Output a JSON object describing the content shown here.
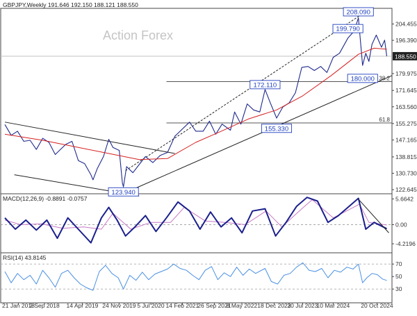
{
  "chart_data": [
    {
      "panel": "price",
      "type": "line",
      "header": "GBPJPY,Weekly  191.646 192.150 188.121 188.550",
      "watermark": "Action Forex",
      "y_ticks": [
        "204.455",
        "196.390",
        "188.550",
        "179.975",
        "171.645",
        "163.560",
        "155.275",
        "147.165",
        "138.815",
        "130.730",
        "122.645"
      ],
      "y_tick_values": [
        204.455,
        196.39,
        188.55,
        179.975,
        171.645,
        163.56,
        155.275,
        147.165,
        138.815,
        130.73,
        122.645
      ],
      "ylim": [
        120.6,
        212.2
      ],
      "last_price": 188.55,
      "last_price_label": "188.550",
      "x_labels": [
        "21 Jan 2018",
        "2 Sep 2018",
        "14 Apr 2019",
        "24 Nov 2019",
        "5 Jul 2020",
        "14 Feb 2021",
        "26 Sep 2021",
        "8 May 2022",
        "18 Dec 2022",
        "30 Jul 2023",
        "10 Mar 2024",
        "20 Oct 2024"
      ],
      "close_series": [
        [
          "2018-01-21",
          154.8
        ],
        [
          "2018-03-04",
          149.5
        ],
        [
          "2018-04-15",
          151.5
        ],
        [
          "2018-05-27",
          146.5
        ],
        [
          "2018-07-08",
          147.0
        ],
        [
          "2018-08-19",
          142.5
        ],
        [
          "2018-09-30",
          148.0
        ],
        [
          "2018-11-11",
          146.0
        ],
        [
          "2018-12-23",
          140.0
        ],
        [
          "2019-01-20",
          142.0
        ],
        [
          "2019-03-03",
          145.0
        ],
        [
          "2019-04-14",
          146.5
        ],
        [
          "2019-05-26",
          137.0
        ],
        [
          "2019-07-07",
          135.5
        ],
        [
          "2019-08-18",
          130.0
        ],
        [
          "2019-09-01",
          127.5
        ],
        [
          "2019-09-29",
          133.0
        ],
        [
          "2019-11-10",
          139.0
        ],
        [
          "2019-12-15",
          147.5
        ],
        [
          "2020-01-12",
          143.5
        ],
        [
          "2020-02-23",
          142.0
        ],
        [
          "2020-03-15",
          126.0
        ],
        [
          "2020-03-22",
          124.0
        ],
        [
          "2020-04-12",
          134.0
        ],
        [
          "2020-05-24",
          131.0
        ],
        [
          "2020-07-05",
          135.0
        ],
        [
          "2020-08-16",
          139.0
        ],
        [
          "2020-10-04",
          136.0
        ],
        [
          "2020-11-22",
          139.5
        ],
        [
          "2021-01-10",
          141.0
        ],
        [
          "2021-02-28",
          149.0
        ],
        [
          "2021-04-11",
          152.0
        ],
        [
          "2021-06-06",
          156.0
        ],
        [
          "2021-07-18",
          151.5
        ],
        [
          "2021-09-05",
          151.5
        ],
        [
          "2021-10-17",
          156.5
        ],
        [
          "2021-11-28",
          150.0
        ],
        [
          "2022-01-09",
          155.0
        ],
        [
          "2022-03-06",
          152.0
        ],
        [
          "2022-04-03",
          161.0
        ],
        [
          "2022-05-15",
          155.0
        ],
        [
          "2022-06-26",
          165.0
        ],
        [
          "2022-08-07",
          162.0
        ],
        [
          "2022-09-18",
          161.0
        ],
        [
          "2022-10-23",
          172.1
        ],
        [
          "2022-11-27",
          165.5
        ],
        [
          "2023-01-08",
          158.0
        ],
        [
          "2023-02-19",
          163.5
        ],
        [
          "2023-04-02",
          165.5
        ],
        [
          "2023-05-14",
          170.5
        ],
        [
          "2023-06-25",
          183.0
        ],
        [
          "2023-08-06",
          183.5
        ],
        [
          "2023-09-17",
          181.5
        ],
        [
          "2023-10-29",
          183.5
        ],
        [
          "2023-12-10",
          180.5
        ],
        [
          "2024-01-21",
          188.0
        ],
        [
          "2024-03-03",
          190.0
        ],
        [
          "2024-04-28",
          197.5
        ],
        [
          "2024-06-09",
          201.0
        ],
        [
          "2024-07-07",
          207.5
        ],
        [
          "2024-08-04",
          184.0
        ],
        [
          "2024-08-25",
          190.0
        ],
        [
          "2024-09-15",
          186.0
        ],
        [
          "2024-10-06",
          194.5
        ],
        [
          "2024-11-03",
          199.0
        ],
        [
          "2024-12-08",
          193.0
        ],
        [
          "2024-12-29",
          196.5
        ],
        [
          "2025-01-12",
          188.55
        ]
      ],
      "ma_series": [
        [
          "2018-01-21",
          150.0
        ],
        [
          "2018-09-30",
          147.0
        ],
        [
          "2019-05-26",
          143.5
        ],
        [
          "2019-12-15",
          140.5
        ],
        [
          "2020-07-05",
          137.5
        ],
        [
          "2021-01-10",
          138.0
        ],
        [
          "2021-07-18",
          146.0
        ],
        [
          "2021-12-19",
          151.0
        ],
        [
          "2022-07-03",
          157.5
        ],
        [
          "2023-01-08",
          162.0
        ],
        [
          "2023-07-02",
          169.0
        ],
        [
          "2024-01-07",
          179.0
        ],
        [
          "2024-07-07",
          189.5
        ],
        [
          "2024-10-20",
          192.5
        ],
        [
          "2025-01-12",
          192.0
        ]
      ],
      "callouts": [
        {
          "label": "208.090",
          "date": "2024-07-07",
          "value": 208.09
        },
        {
          "label": "199.790",
          "date": "2024-04-28",
          "value": 199.79
        },
        {
          "label": "180.000",
          "date": "2024-08-04",
          "value": 180.0
        },
        {
          "label": "172.110",
          "date": "2022-10-23",
          "value": 172.11
        },
        {
          "label": "155.330",
          "date": "2023-01-08",
          "value": 155.33
        },
        {
          "label": "123.940",
          "date": "2020-03-22",
          "value": 123.94
        }
      ],
      "fib_levels": [
        {
          "label": "38.2",
          "value": 176.0
        },
        {
          "label": "61.8",
          "value": 155.6
        }
      ],
      "trendlines": [
        {
          "name": "falling-channel-upper",
          "from": [
            "2018-01-21",
            156.0
          ],
          "to": [
            "2021-02-28",
            140.5
          ]
        },
        {
          "name": "falling-channel-lower",
          "from": [
            "2018-03-25",
            130.0
          ],
          "to": [
            "2020-07-05",
            119.5
          ]
        },
        {
          "name": "rising-support",
          "from": [
            "2020-05-31",
            123.0
          ],
          "to": [
            "2025-02-16",
            179.0
          ]
        },
        {
          "name": "rising-channel-upper",
          "from": [
            "2020-04-05",
            132.0
          ],
          "to": [
            "2024-07-14",
            208.5
          ],
          "dashed": true
        }
      ]
    },
    {
      "panel": "macd",
      "type": "line",
      "header": "MACD(12,26,9) -0.8891 -0.0757",
      "y_ticks": [
        "5.6642",
        "0.00",
        "-4.2196"
      ],
      "y_tick_values": [
        5.6642,
        0,
        -4.2196
      ],
      "ylim": [
        -6.2,
        6.8
      ],
      "macd_series": [
        [
          "2018-01-21",
          1.5
        ],
        [
          "2018-04-01",
          -1.0
        ],
        [
          "2018-06-10",
          1.0
        ],
        [
          "2018-08-19",
          -1.2
        ],
        [
          "2018-10-28",
          1.0
        ],
        [
          "2019-01-06",
          -3.0
        ],
        [
          "2019-03-17",
          1.5
        ],
        [
          "2019-05-26",
          -1.0
        ],
        [
          "2019-08-18",
          -4.0
        ],
        [
          "2019-10-27",
          1.5
        ],
        [
          "2019-12-15",
          3.8
        ],
        [
          "2020-02-09",
          1.0
        ],
        [
          "2020-04-05",
          -2.5
        ],
        [
          "2020-06-07",
          -0.5
        ],
        [
          "2020-08-16",
          2.0
        ],
        [
          "2020-10-25",
          -1.5
        ],
        [
          "2021-01-03",
          1.5
        ],
        [
          "2021-03-21",
          5.0
        ],
        [
          "2021-06-06",
          3.0
        ],
        [
          "2021-08-15",
          -1.0
        ],
        [
          "2021-10-24",
          2.8
        ],
        [
          "2022-01-02",
          -0.5
        ],
        [
          "2022-03-13",
          1.5
        ],
        [
          "2022-05-22",
          -1.8
        ],
        [
          "2022-07-31",
          3.0
        ],
        [
          "2022-10-23",
          3.5
        ],
        [
          "2023-01-01",
          -2.5
        ],
        [
          "2023-03-12",
          0.5
        ],
        [
          "2023-05-21",
          4.0
        ],
        [
          "2023-07-30",
          6.0
        ],
        [
          "2023-10-08",
          5.2
        ],
        [
          "2023-12-17",
          0.5
        ],
        [
          "2024-02-25",
          2.0
        ],
        [
          "2024-07-07",
          5.8
        ],
        [
          "2024-08-25",
          -1.0
        ],
        [
          "2024-10-20",
          0.5
        ],
        [
          "2025-01-12",
          -0.89
        ]
      ],
      "signal_series": [
        [
          "2018-01-21",
          1.0
        ],
        [
          "2018-05-06",
          0.0
        ],
        [
          "2018-09-23",
          0.2
        ],
        [
          "2019-02-10",
          -0.8
        ],
        [
          "2019-06-30",
          -0.5
        ],
        [
          "2019-10-27",
          -1.0
        ],
        [
          "2020-01-12",
          2.5
        ],
        [
          "2020-05-10",
          -1.0
        ],
        [
          "2020-09-20",
          0.5
        ],
        [
          "2021-01-31",
          0.5
        ],
        [
          "2021-05-02",
          3.8
        ],
        [
          "2021-09-19",
          0.8
        ],
        [
          "2022-01-30",
          0.5
        ],
        [
          "2022-06-12",
          0.0
        ],
        [
          "2022-10-30",
          3.0
        ],
        [
          "2023-02-12",
          -0.5
        ],
        [
          "2023-06-25",
          3.5
        ],
        [
          "2023-09-03",
          5.5
        ],
        [
          "2024-01-21",
          1.5
        ],
        [
          "2024-07-14",
          4.5
        ],
        [
          "2024-09-15",
          0.5
        ],
        [
          "2025-01-12",
          -0.08
        ]
      ],
      "trendline": {
        "from": [
          "2024-07-07",
          5.6
        ],
        "to": [
          "2025-01-26",
          -1.8
        ]
      },
      "zero_line": 0
    },
    {
      "panel": "rsi",
      "type": "line",
      "header": "RSI(14) 43.8145",
      "y_ticks": [
        "70",
        "50",
        "30"
      ],
      "y_tick_values": [
        70,
        50,
        30
      ],
      "ylim": [
        8,
        88
      ],
      "reference_lines": [
        70,
        30
      ],
      "rsi_series": [
        [
          "2018-01-21",
          58
        ],
        [
          "2018-03-04",
          40
        ],
        [
          "2018-04-15",
          55
        ],
        [
          "2018-05-27",
          45
        ],
        [
          "2018-07-08",
          52
        ],
        [
          "2018-08-19",
          38
        ],
        [
          "2018-09-30",
          60
        ],
        [
          "2018-11-11",
          48
        ],
        [
          "2018-12-23",
          33
        ],
        [
          "2019-02-03",
          55
        ],
        [
          "2019-03-17",
          60
        ],
        [
          "2019-04-28",
          48
        ],
        [
          "2019-06-09",
          38
        ],
        [
          "2019-07-21",
          32
        ],
        [
          "2019-09-01",
          28
        ],
        [
          "2019-10-13",
          58
        ],
        [
          "2019-11-24",
          68
        ],
        [
          "2020-01-05",
          55
        ],
        [
          "2020-02-16",
          48
        ],
        [
          "2020-03-22",
          30
        ],
        [
          "2020-05-03",
          52
        ],
        [
          "2020-06-14",
          44
        ],
        [
          "2020-07-26",
          57
        ],
        [
          "2020-09-06",
          45
        ],
        [
          "2020-10-18",
          54
        ],
        [
          "2020-11-29",
          58
        ],
        [
          "2021-01-10",
          62
        ],
        [
          "2021-02-21",
          70
        ],
        [
          "2021-04-04",
          63
        ],
        [
          "2021-05-16",
          60
        ],
        [
          "2021-06-27",
          52
        ],
        [
          "2021-08-08",
          45
        ],
        [
          "2021-09-19",
          60
        ],
        [
          "2021-10-31",
          66
        ],
        [
          "2021-12-12",
          45
        ],
        [
          "2022-01-23",
          56
        ],
        [
          "2022-03-06",
          50
        ],
        [
          "2022-04-17",
          65
        ],
        [
          "2022-05-29",
          52
        ],
        [
          "2022-07-10",
          62
        ],
        [
          "2022-08-21",
          55
        ],
        [
          "2022-10-23",
          63
        ],
        [
          "2022-12-04",
          42
        ],
        [
          "2023-01-15",
          38
        ],
        [
          "2023-02-26",
          52
        ],
        [
          "2023-04-09",
          55
        ],
        [
          "2023-05-21",
          65
        ],
        [
          "2023-07-02",
          72
        ],
        [
          "2023-08-13",
          60
        ],
        [
          "2023-09-24",
          58
        ],
        [
          "2023-11-05",
          63
        ],
        [
          "2023-12-17",
          48
        ],
        [
          "2024-01-28",
          60
        ],
        [
          "2024-03-10",
          57
        ],
        [
          "2024-04-21",
          65
        ],
        [
          "2024-06-02",
          62
        ],
        [
          "2024-07-07",
          70
        ],
        [
          "2024-08-04",
          40
        ],
        [
          "2024-09-01",
          48
        ],
        [
          "2024-10-06",
          55
        ],
        [
          "2024-11-10",
          53
        ],
        [
          "2024-12-15",
          46
        ],
        [
          "2025-01-12",
          43.8
        ]
      ]
    }
  ],
  "colors": {
    "background": "#ffffff",
    "price_line": "#1f2a8c",
    "moving_average": "#d62020",
    "macd_line": "#1a1f8c",
    "signal_line": "#c678c4",
    "rsi_line": "#4a90e2",
    "trendline": "#222222",
    "level_line": "#555555",
    "callout_box": "#1f3fbf",
    "price_tag": "#222222"
  }
}
